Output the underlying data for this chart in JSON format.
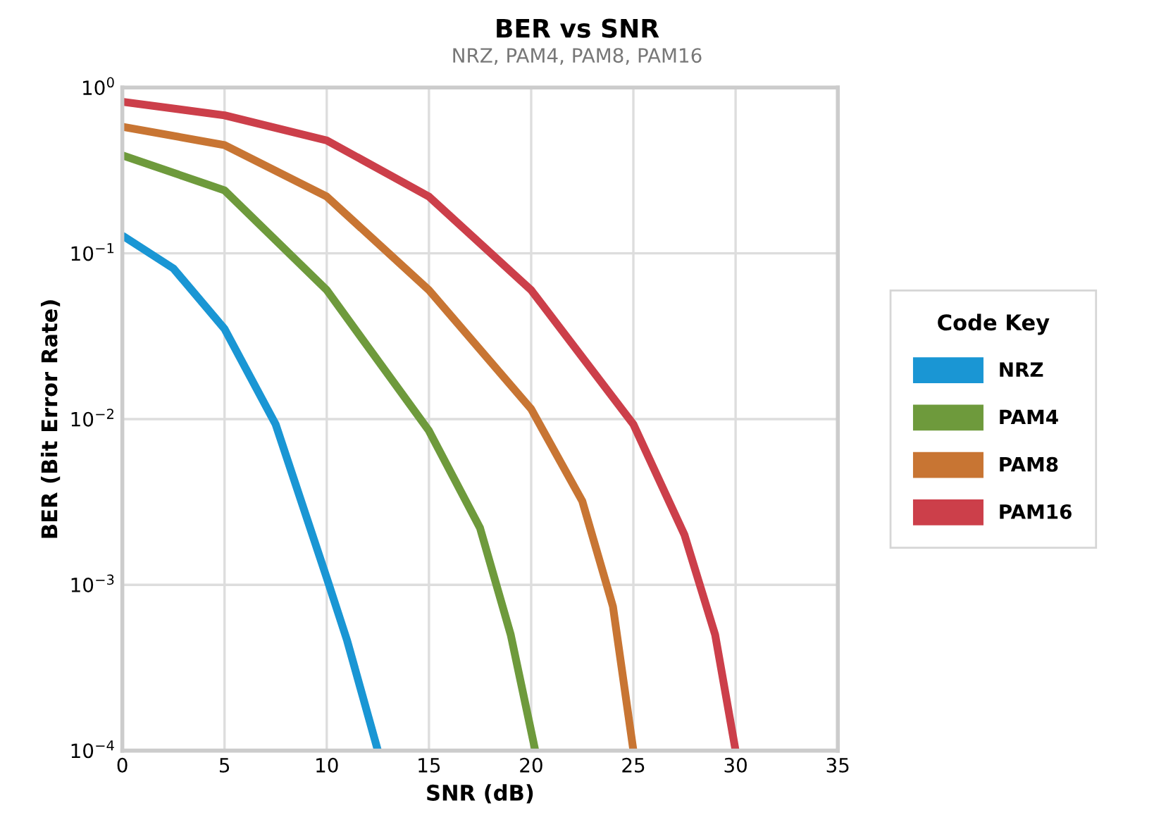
{
  "chart_data": {
    "type": "line",
    "title": "BER vs SNR",
    "subtitle": "NRZ, PAM4, PAM8, PAM16",
    "xlabel": "SNR (dB)",
    "ylabel": "BER (Bit Error Rate)",
    "legend_title": "Code Key",
    "log": "y",
    "grid": true,
    "legend": "right",
    "marker": "none",
    "line_style": "solid",
    "xlim": [
      0,
      35
    ],
    "xticks": [
      0,
      5,
      10,
      15,
      20,
      25,
      30,
      35
    ],
    "ylim": [
      0.0001,
      1
    ],
    "yticks": [
      {
        "value": 0.0001,
        "label": "10$^{−4}$"
      },
      {
        "value": 0.001,
        "label": "10$^{−3}$"
      },
      {
        "value": 0.01,
        "label": "10$^{−2}$"
      },
      {
        "value": 0.1,
        "label": "10$^{−1}$"
      },
      {
        "value": 1,
        "label": "10$^{0}$"
      }
    ],
    "series": [
      {
        "name": "NRZ",
        "color": "#1a96d4",
        "x": [
          0,
          2.5,
          5,
          7.5,
          10,
          11,
          12.5
        ],
        "values": [
          0.128,
          0.081,
          0.035,
          0.0093,
          0.0011,
          0.00046,
          0.0001
        ]
      },
      {
        "name": "PAM4",
        "color": "#6e9a3c",
        "x": [
          0,
          5,
          10,
          15,
          17.5,
          19,
          20.2
        ],
        "values": [
          0.39,
          0.24,
          0.06,
          0.0085,
          0.0022,
          0.0005,
          0.0001
        ]
      },
      {
        "name": "PAM8",
        "color": "#c87533",
        "x": [
          0,
          5,
          10,
          15,
          20,
          22.5,
          24,
          25
        ],
        "values": [
          0.58,
          0.45,
          0.22,
          0.06,
          0.0115,
          0.0032,
          0.00074,
          0.0001
        ]
      },
      {
        "name": "PAM16",
        "color": "#cc3f4a",
        "x": [
          0,
          5,
          10,
          15,
          20,
          25,
          27.5,
          29,
          30
        ],
        "values": [
          0.82,
          0.68,
          0.48,
          0.22,
          0.06,
          0.0093,
          0.002,
          0.0005,
          0.0001
        ]
      }
    ]
  }
}
